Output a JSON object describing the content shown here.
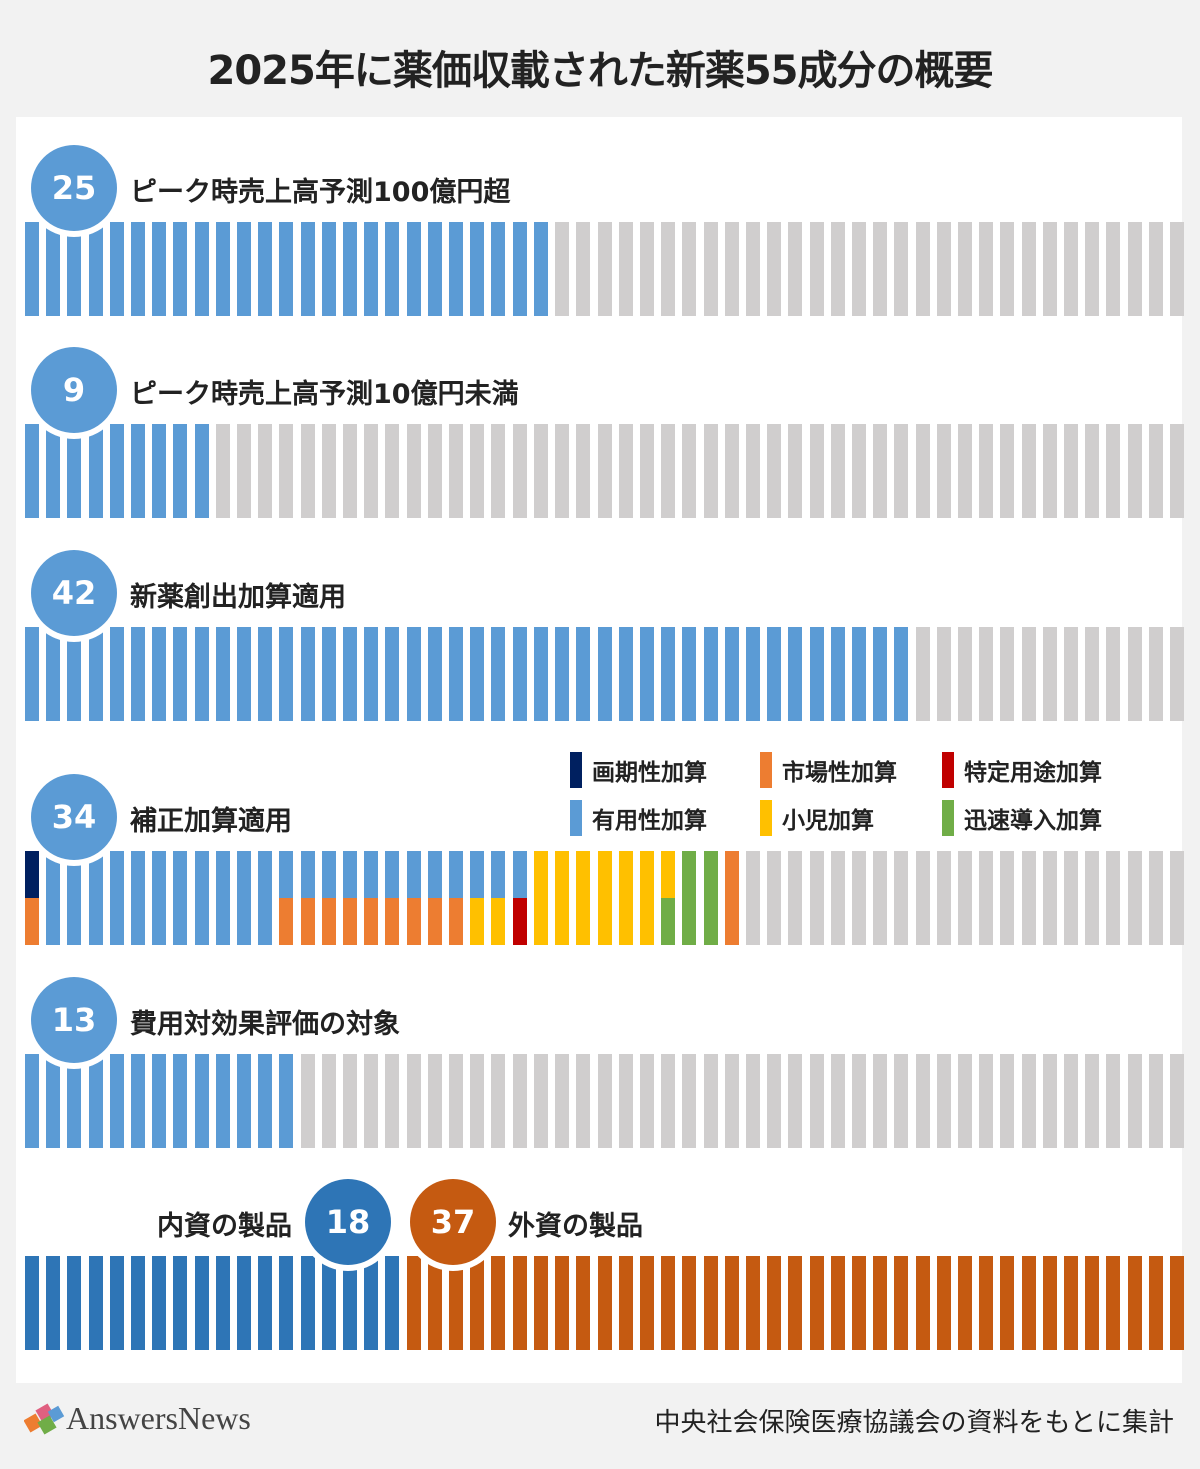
{
  "title": "2025年に薬価収載された新薬55成分の概要",
  "source": "中央社会保険医療協議会の資料をもとに集計",
  "logo": "AnswersNews",
  "colors": {
    "blue": "#5B9BD5",
    "gray": "#D0CECE",
    "navy": "#002060",
    "orange": "#ED7D31",
    "red": "#C00000",
    "yellow": "#FFC000",
    "green": "#70AD47",
    "domestic": "#2E75B6",
    "foreign": "#C55A11"
  },
  "chart_data": {
    "type": "pictogram-bar",
    "total": 55,
    "rows": [
      {
        "label": "ピーク時売上高予測100億円超",
        "value": 25
      },
      {
        "label": "ピーク時売上高予測10億円未満",
        "value": 9
      },
      {
        "label": "新薬創出加算適用",
        "value": 42
      },
      {
        "label": "補正加算適用",
        "value": 34
      },
      {
        "label": "費用対効果評価の対象",
        "value": 13
      }
    ],
    "legend": [
      {
        "name": "画期性加算",
        "color": "#002060"
      },
      {
        "name": "市場性加算",
        "color": "#ED7D31"
      },
      {
        "name": "特定用途加算",
        "color": "#C00000"
      },
      {
        "name": "有用性加算",
        "color": "#5B9BD5"
      },
      {
        "name": "小児加算",
        "color": "#FFC000"
      },
      {
        "name": "迅速導入加算",
        "color": "#70AD47"
      }
    ],
    "correction_stacks": [
      {
        "count": 1,
        "top": "画期性加算",
        "bottom": "市場性加算"
      },
      {
        "count": 11,
        "top": "有用性加算",
        "bottom": "有用性加算"
      },
      {
        "count": 9,
        "top": "有用性加算",
        "bottom": "市場性加算"
      },
      {
        "count": 2,
        "top": "有用性加算",
        "bottom": "小児加算"
      },
      {
        "count": 1,
        "top": "有用性加算",
        "bottom": "特定用途加算"
      },
      {
        "count": 6,
        "top": "小児加算",
        "bottom": "小児加算"
      },
      {
        "count": 1,
        "top": "小児加算",
        "bottom": "迅速導入加算"
      },
      {
        "count": 2,
        "top": "迅速導入加算",
        "bottom": "迅速導入加算"
      },
      {
        "count": 1,
        "top": "市場性加算",
        "bottom": "市場性加算"
      }
    ],
    "origin": [
      {
        "label": "内資の製品",
        "value": 18
      },
      {
        "label": "外資の製品",
        "value": 37
      }
    ]
  }
}
